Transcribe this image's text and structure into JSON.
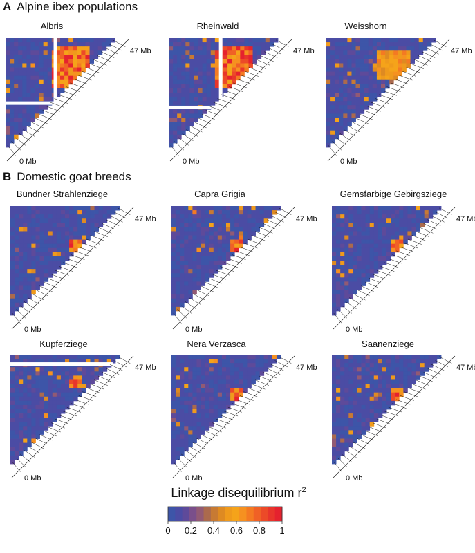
{
  "sections": [
    {
      "letter": "A",
      "title": "Alpine ibex populations"
    },
    {
      "letter": "B",
      "title": "Domestic goat breeds"
    }
  ],
  "panels": [
    {
      "name": "Albris",
      "hotspot": "strong",
      "gaps": [
        {
          "type": "col",
          "pos": 0.44
        },
        {
          "type": "row",
          "pos": 0.58
        }
      ]
    },
    {
      "name": "Rheinwald",
      "hotspot": "strong",
      "gaps": [
        {
          "type": "col",
          "pos": 0.46
        },
        {
          "type": "row",
          "pos": 0.62
        }
      ]
    },
    {
      "name": "Weisshorn",
      "hotspot": "medium",
      "gaps": []
    },
    {
      "name": "Bündner Strahlenziege",
      "hotspot": "weak",
      "gaps": []
    },
    {
      "name": "Capra Grigia",
      "hotspot": "weak",
      "gaps": []
    },
    {
      "name": "Gemsfarbige Gebirgsziege",
      "hotspot": "weak",
      "gaps": []
    },
    {
      "name": "Kupferziege",
      "hotspot": "weak-strip",
      "gaps": [
        {
          "type": "row",
          "pos": 0.07
        }
      ]
    },
    {
      "name": "Nera Verzasca",
      "hotspot": "weak",
      "gaps": []
    },
    {
      "name": "Saanenziege",
      "hotspot": "weak",
      "gaps": []
    }
  ],
  "axis_labels": {
    "top": "47 Mb",
    "bottom": "0 Mb"
  },
  "legend": {
    "title": "Linkage disequilibrium r",
    "title_superscript": "2",
    "ticks": [
      "0",
      "0.2",
      "0.4",
      "0.6",
      "0.8",
      "1"
    ],
    "colors": [
      "#3d55a8",
      "#4b4ca4",
      "#5e4a9a",
      "#7a4f8b",
      "#925a74",
      "#ab6a4d",
      "#c77a33",
      "#de8a22",
      "#ef9a1c",
      "#f5a31a",
      "#f69120",
      "#f47a22",
      "#f06126",
      "#ec4a28",
      "#e8352b",
      "#e5222e"
    ]
  }
}
